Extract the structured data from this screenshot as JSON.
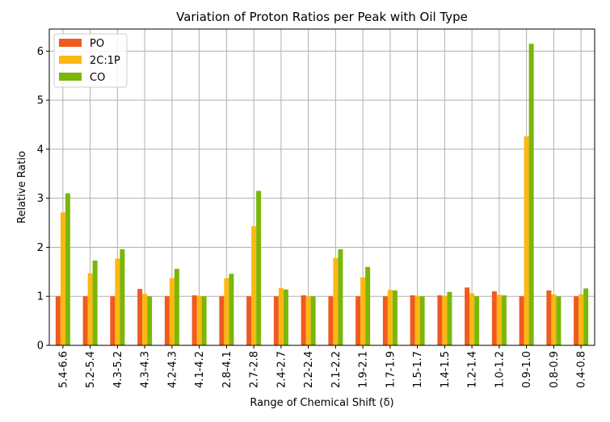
{
  "chart_data": {
    "type": "bar",
    "title": "Variation of Proton Ratios per Peak with Oil Type",
    "xlabel": "Range of Chemical Shift (δ)",
    "ylabel": "Relative Ratio",
    "ylim": [
      0,
      6.45
    ],
    "yticks": [
      "0",
      "1",
      "2",
      "3",
      "4",
      "5",
      "6"
    ],
    "grid": true,
    "legend_position": "top-left",
    "categories": [
      "5.4-6.6",
      "5.2-5.4",
      "4.3-5.2",
      "4.3-4.3",
      "4.2-4.3",
      "4.1-4.2",
      "2.8-4.1",
      "2.7-2.8",
      "2.4-2.7",
      "2.2-2.4",
      "2.1-2.2",
      "1.9-2.1",
      "1.7-1.9",
      "1.5-1.7",
      "1.4-1.5",
      "1.2-1.4",
      "1.0-1.2",
      "0.9-1.0",
      "0.8-0.9",
      "0.4-0.8"
    ],
    "series": [
      {
        "name": "PO",
        "color": "#f05a1e",
        "values": [
          1.0,
          1.0,
          1.0,
          1.15,
          1.0,
          1.02,
          1.0,
          1.0,
          1.0,
          1.02,
          1.0,
          1.0,
          1.0,
          1.02,
          1.02,
          1.18,
          1.1,
          1.0,
          1.12,
          1.0
        ]
      },
      {
        "name": "2C:1P",
        "color": "#fcb712",
        "values": [
          2.71,
          1.47,
          1.77,
          1.05,
          1.37,
          1.01,
          1.37,
          2.43,
          1.17,
          1.0,
          1.78,
          1.39,
          1.13,
          1.01,
          1.01,
          1.06,
          1.03,
          4.26,
          1.04,
          1.04
        ]
      },
      {
        "name": "CO",
        "color": "#7ab709",
        "values": [
          3.1,
          1.73,
          1.96,
          1.0,
          1.56,
          1.0,
          1.46,
          3.15,
          1.14,
          1.0,
          1.96,
          1.6,
          1.12,
          1.0,
          1.09,
          1.0,
          1.02,
          6.15,
          1.0,
          1.16
        ]
      }
    ]
  }
}
